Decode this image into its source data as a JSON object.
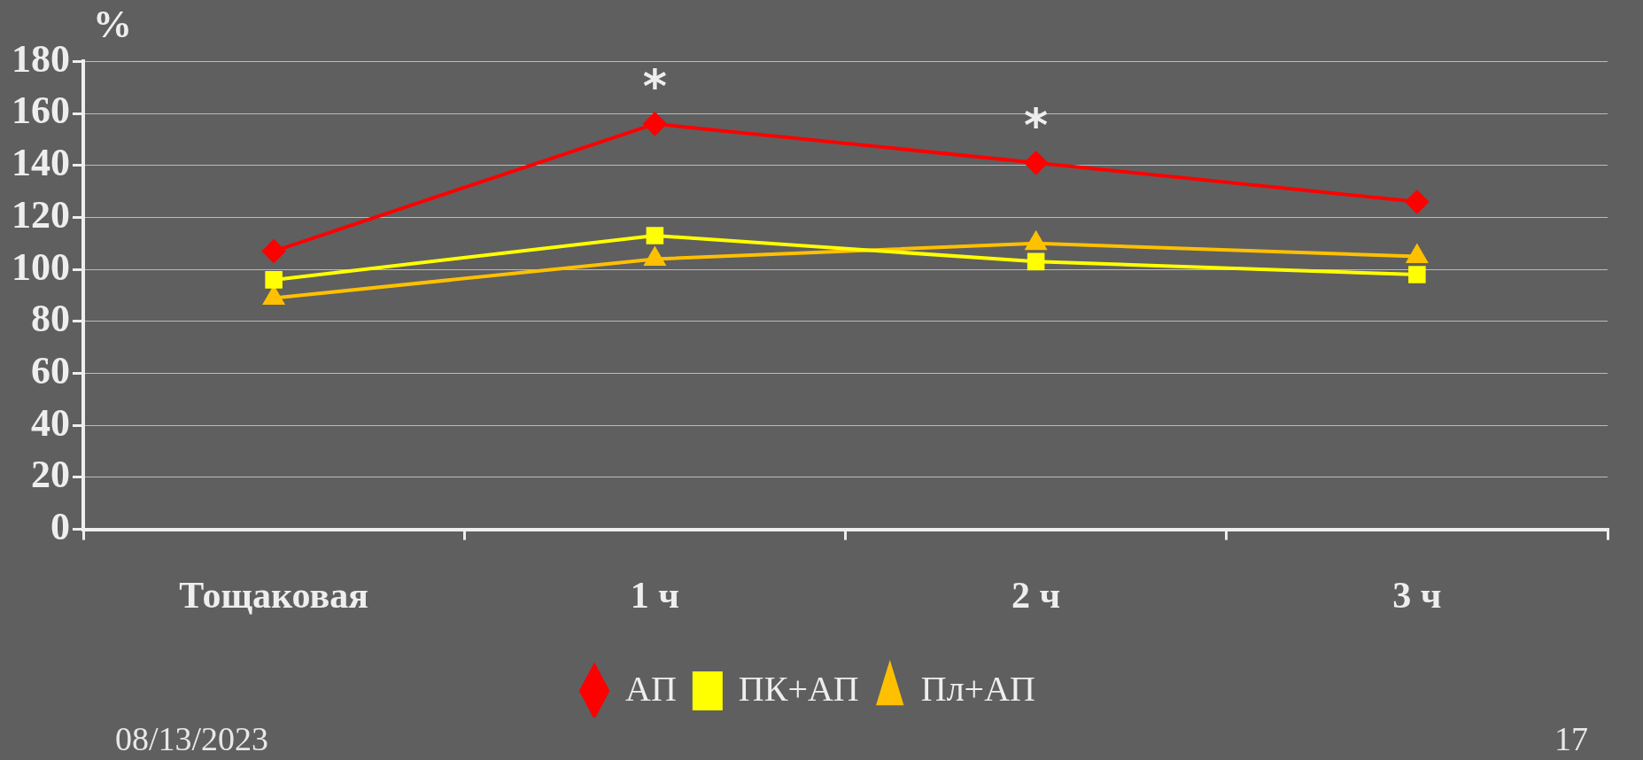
{
  "chart_data": {
    "type": "line",
    "ylabel": "%",
    "categories": [
      "Тощаковая",
      "1 ч",
      "2 ч",
      "3 ч"
    ],
    "series": [
      {
        "name": "АП",
        "color": "#ff0000",
        "marker": "diamond",
        "values": [
          107,
          156,
          141,
          126
        ]
      },
      {
        "name": "ПК+АП",
        "color": "#ffff00",
        "marker": "square",
        "values": [
          96,
          113,
          103,
          98
        ]
      },
      {
        "name": "Пл+АП",
        "color": "#ffc000",
        "marker": "triangle",
        "values": [
          89,
          104,
          110,
          105
        ]
      }
    ],
    "ylim": [
      0,
      180
    ],
    "yticks": [
      0,
      20,
      40,
      60,
      80,
      100,
      120,
      140,
      160,
      180
    ],
    "grid": "y",
    "legend": "bottom",
    "annotations": [
      {
        "text": "*",
        "x": "1 ч",
        "y": 156
      },
      {
        "text": "*",
        "x": "2 ч",
        "y": 141
      },
      "08/13/2023",
      "17"
    ]
  }
}
